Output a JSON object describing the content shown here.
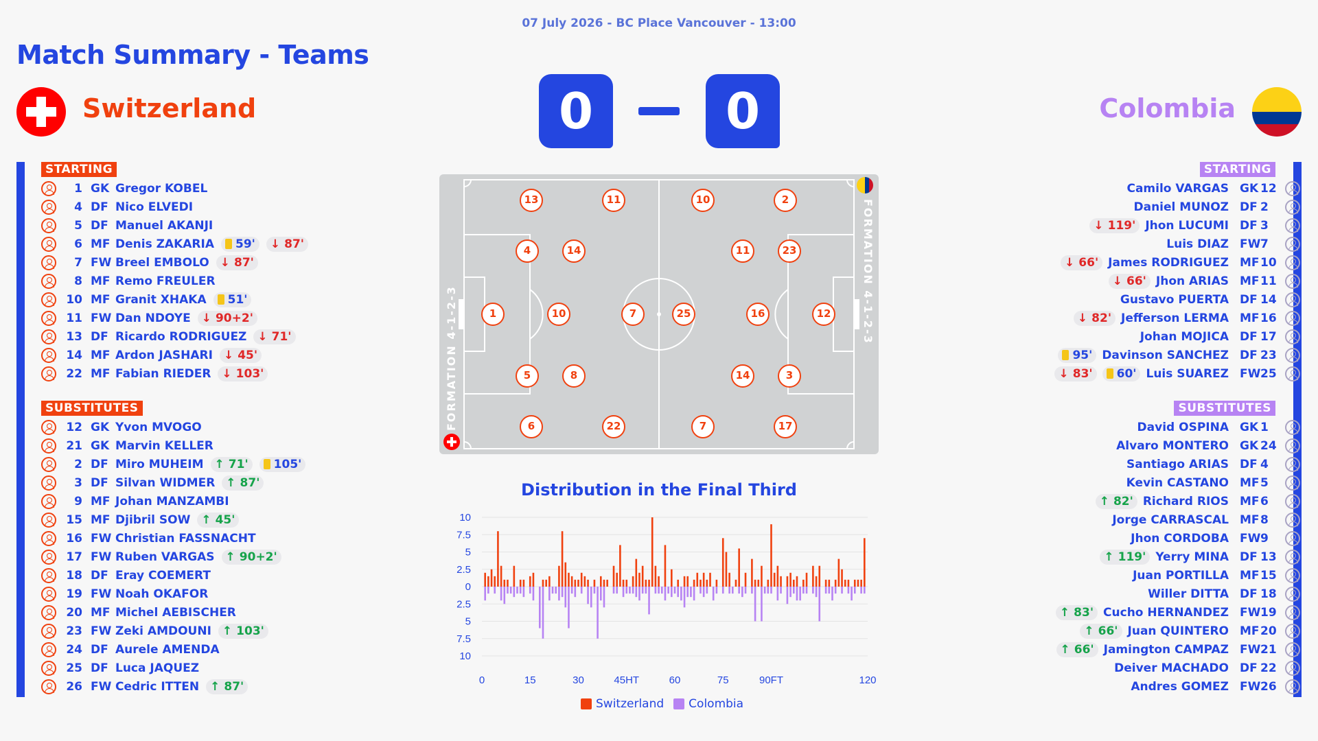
{
  "header": {
    "date_venue": "07 July 2026 - BC Place Vancouver - 13:00",
    "title": "Match Summary - Teams"
  },
  "teams": {
    "home": {
      "name": "Switzerland",
      "color": "#f0410f",
      "score": "0",
      "formation": "FORMATION 4-1-2-3",
      "flag_icon": "switzerland-flag-icon"
    },
    "away": {
      "name": "Colombia",
      "color": "#b783f3",
      "score": "0",
      "formation": "FORMATION 4-1-2-3",
      "flag_icon": "colombia-flag-icon"
    }
  },
  "labels": {
    "starting": "STARTING",
    "substitutes": "SUBSTITUTES"
  },
  "home_starting": [
    {
      "num": "1",
      "pos": "GK",
      "name": "Gregor KOBEL",
      "events": []
    },
    {
      "num": "4",
      "pos": "DF",
      "name": "Nico ELVEDI",
      "events": []
    },
    {
      "num": "5",
      "pos": "DF",
      "name": "Manuel AKANJI",
      "events": []
    },
    {
      "num": "6",
      "pos": "MF",
      "name": "Denis ZAKARIA",
      "events": [
        {
          "type": "yellow",
          "min": "59'"
        },
        {
          "type": "off",
          "min": "87'"
        }
      ]
    },
    {
      "num": "7",
      "pos": "FW",
      "name": "Breel EMBOLO",
      "events": [
        {
          "type": "off",
          "min": "87'"
        }
      ]
    },
    {
      "num": "8",
      "pos": "MF",
      "name": "Remo FREULER",
      "events": []
    },
    {
      "num": "10",
      "pos": "MF",
      "name": "Granit XHAKA",
      "events": [
        {
          "type": "yellow",
          "min": "51'"
        }
      ]
    },
    {
      "num": "11",
      "pos": "FW",
      "name": "Dan NDOYE",
      "events": [
        {
          "type": "off",
          "min": "90+2'"
        }
      ]
    },
    {
      "num": "13",
      "pos": "DF",
      "name": "Ricardo RODRIGUEZ",
      "events": [
        {
          "type": "off",
          "min": "71'"
        }
      ]
    },
    {
      "num": "14",
      "pos": "MF",
      "name": "Ardon JASHARI",
      "events": [
        {
          "type": "off",
          "min": "45'"
        }
      ]
    },
    {
      "num": "22",
      "pos": "MF",
      "name": "Fabian RIEDER",
      "events": [
        {
          "type": "off",
          "min": "103'"
        }
      ]
    }
  ],
  "home_subs": [
    {
      "num": "12",
      "pos": "GK",
      "name": "Yvon MVOGO",
      "events": []
    },
    {
      "num": "21",
      "pos": "GK",
      "name": "Marvin KELLER",
      "events": []
    },
    {
      "num": "2",
      "pos": "DF",
      "name": "Miro MUHEIM",
      "events": [
        {
          "type": "on",
          "min": "71'"
        },
        {
          "type": "yellow",
          "min": "105'"
        }
      ]
    },
    {
      "num": "3",
      "pos": "DF",
      "name": "Silvan WIDMER",
      "events": [
        {
          "type": "on",
          "min": "87'"
        }
      ]
    },
    {
      "num": "9",
      "pos": "MF",
      "name": "Johan MANZAMBI",
      "events": []
    },
    {
      "num": "15",
      "pos": "MF",
      "name": "Djibril SOW",
      "events": [
        {
          "type": "on",
          "min": "45'"
        }
      ]
    },
    {
      "num": "16",
      "pos": "FW",
      "name": "Christian FASSNACHT",
      "events": []
    },
    {
      "num": "17",
      "pos": "FW",
      "name": "Ruben VARGAS",
      "events": [
        {
          "type": "on",
          "min": "90+2'"
        }
      ]
    },
    {
      "num": "18",
      "pos": "DF",
      "name": "Eray COEMERT",
      "events": []
    },
    {
      "num": "19",
      "pos": "FW",
      "name": "Noah OKAFOR",
      "events": []
    },
    {
      "num": "20",
      "pos": "MF",
      "name": "Michel AEBISCHER",
      "events": []
    },
    {
      "num": "23",
      "pos": "FW",
      "name": "Zeki AMDOUNI",
      "events": [
        {
          "type": "on",
          "min": "103'"
        }
      ]
    },
    {
      "num": "24",
      "pos": "DF",
      "name": "Aurele AMENDA",
      "events": []
    },
    {
      "num": "25",
      "pos": "DF",
      "name": "Luca JAQUEZ",
      "events": []
    },
    {
      "num": "26",
      "pos": "FW",
      "name": "Cedric ITTEN",
      "events": [
        {
          "type": "on",
          "min": "87'"
        }
      ]
    }
  ],
  "away_starting": [
    {
      "num": "12",
      "pos": "GK",
      "name": "Camilo VARGAS",
      "events": []
    },
    {
      "num": "2",
      "pos": "DF",
      "name": "Daniel MUNOZ",
      "events": []
    },
    {
      "num": "3",
      "pos": "DF",
      "name": "Jhon LUCUMI",
      "events": [
        {
          "type": "off",
          "min": "119'"
        }
      ]
    },
    {
      "num": "7",
      "pos": "FW",
      "name": "Luis DIAZ",
      "events": []
    },
    {
      "num": "10",
      "pos": "MF",
      "name": "James RODRIGUEZ",
      "events": [
        {
          "type": "off",
          "min": "66'"
        }
      ]
    },
    {
      "num": "11",
      "pos": "MF",
      "name": "Jhon ARIAS",
      "events": [
        {
          "type": "off",
          "min": "66'"
        }
      ]
    },
    {
      "num": "14",
      "pos": "DF",
      "name": "Gustavo PUERTA",
      "events": []
    },
    {
      "num": "16",
      "pos": "MF",
      "name": "Jefferson LERMA",
      "events": [
        {
          "type": "off",
          "min": "82'"
        }
      ]
    },
    {
      "num": "17",
      "pos": "DF",
      "name": "Johan MOJICA",
      "events": []
    },
    {
      "num": "23",
      "pos": "DF",
      "name": "Davinson SANCHEZ",
      "events": [
        {
          "type": "yellow",
          "min": "95'"
        }
      ]
    },
    {
      "num": "25",
      "pos": "FW",
      "name": "Luis SUAREZ",
      "events": [
        {
          "type": "off",
          "min": "83'"
        },
        {
          "type": "yellow",
          "min": "60'"
        }
      ]
    }
  ],
  "away_subs": [
    {
      "num": "1",
      "pos": "GK",
      "name": "David OSPINA",
      "events": []
    },
    {
      "num": "24",
      "pos": "GK",
      "name": "Alvaro MONTERO",
      "events": []
    },
    {
      "num": "4",
      "pos": "DF",
      "name": "Santiago ARIAS",
      "events": []
    },
    {
      "num": "5",
      "pos": "MF",
      "name": "Kevin CASTANO",
      "events": []
    },
    {
      "num": "6",
      "pos": "MF",
      "name": "Richard RIOS",
      "events": [
        {
          "type": "on",
          "min": "82'"
        }
      ]
    },
    {
      "num": "8",
      "pos": "MF",
      "name": "Jorge CARRASCAL",
      "events": []
    },
    {
      "num": "9",
      "pos": "FW",
      "name": "Jhon CORDOBA",
      "events": []
    },
    {
      "num": "13",
      "pos": "DF",
      "name": "Yerry MINA",
      "events": [
        {
          "type": "on",
          "min": "119'"
        }
      ]
    },
    {
      "num": "15",
      "pos": "MF",
      "name": "Juan PORTILLA",
      "events": []
    },
    {
      "num": "18",
      "pos": "DF",
      "name": "Willer DITTA",
      "events": []
    },
    {
      "num": "19",
      "pos": "FW",
      "name": "Cucho HERNANDEZ",
      "events": [
        {
          "type": "on",
          "min": "83'"
        }
      ]
    },
    {
      "num": "20",
      "pos": "MF",
      "name": "Juan QUINTERO",
      "events": [
        {
          "type": "on",
          "min": "66'"
        }
      ]
    },
    {
      "num": "21",
      "pos": "FW",
      "name": "Jamington CAMPAZ",
      "events": [
        {
          "type": "on",
          "min": "66'"
        }
      ]
    },
    {
      "num": "22",
      "pos": "DF",
      "name": "Deiver MACHADO",
      "events": []
    },
    {
      "num": "26",
      "pos": "FW",
      "name": "Andres GOMEZ",
      "events": []
    }
  ],
  "pitch": {
    "home_numbers": [
      "1",
      "4",
      "5",
      "13",
      "14",
      "6",
      "8",
      "10",
      "7",
      "11",
      "22"
    ],
    "away_numbers": [
      "12",
      "23",
      "3",
      "2",
      "17",
      "16",
      "11",
      "14",
      "25",
      "10",
      "7"
    ]
  },
  "chart_data": {
    "type": "bar",
    "title": "Distribution in the Final Third",
    "xlim": [
      0,
      120
    ],
    "x_ticks": [
      "0",
      "15",
      "30",
      "45HT",
      "60",
      "75",
      "90FT",
      "120"
    ],
    "x_tick_values": [
      0,
      15,
      30,
      45,
      60,
      75,
      90,
      120
    ],
    "ylim": [
      -10,
      10
    ],
    "y_ticks": [
      "10",
      "7.5",
      "5",
      "2.5",
      "0",
      "2.5",
      "5",
      "7.5",
      "10"
    ],
    "series": [
      {
        "name": "Switzerland",
        "color": "#f0410f",
        "x": [
          1,
          2,
          3,
          4,
          5,
          6,
          7,
          8,
          10,
          12,
          13,
          15,
          16,
          19,
          20,
          21,
          24,
          25,
          26,
          27,
          28,
          29,
          30,
          31,
          32,
          33,
          35,
          37,
          38,
          39,
          41,
          42,
          43,
          44,
          45,
          47,
          48,
          49,
          50,
          51,
          52,
          53,
          54,
          55,
          57,
          59,
          61,
          63,
          64,
          66,
          67,
          68,
          69,
          70,
          71,
          73,
          75,
          76,
          77,
          79,
          80,
          82,
          84,
          85,
          86,
          87,
          89,
          90,
          91,
          92,
          93,
          95,
          96,
          97,
          98,
          100,
          101,
          103,
          104,
          105,
          107,
          108,
          110,
          111,
          112,
          113,
          114,
          116,
          117,
          118,
          119
        ],
        "values": [
          2,
          1.5,
          2.5,
          1.5,
          8,
          3,
          1,
          1,
          3,
          1,
          1,
          1.5,
          2,
          1,
          1,
          1.5,
          3,
          8,
          3.5,
          2,
          1.5,
          1,
          1,
          2,
          1.5,
          1,
          1,
          1.5,
          1,
          1,
          3,
          2,
          6,
          1,
          1,
          1.5,
          4,
          2,
          3,
          1,
          1,
          10,
          3,
          1.5,
          6,
          2.5,
          1,
          1.5,
          1.5,
          1,
          2,
          1,
          2,
          1,
          2,
          1,
          7,
          5,
          2,
          1,
          5.5,
          2,
          4,
          1,
          1,
          3,
          1,
          9,
          2,
          3,
          1.5,
          1.5,
          2,
          1,
          1.5,
          1,
          2,
          3,
          1.5,
          3,
          1,
          1,
          1,
          4,
          2.5,
          1,
          1,
          1,
          1,
          1,
          7
        ]
      },
      {
        "name": "Colombia",
        "color": "#b783f3",
        "x": [
          1,
          2,
          4,
          6,
          7,
          8,
          9,
          10,
          11,
          12,
          13,
          15,
          16,
          18,
          19,
          21,
          22,
          23,
          24,
          25,
          26,
          27,
          28,
          29,
          31,
          33,
          34,
          35,
          36,
          37,
          38,
          41,
          42,
          44,
          45,
          46,
          47,
          48,
          49,
          50,
          51,
          52,
          54,
          55,
          56,
          57,
          58,
          59,
          60,
          61,
          62,
          63,
          64,
          65,
          66,
          68,
          69,
          70,
          72,
          73,
          75,
          77,
          78,
          80,
          81,
          82,
          84,
          85,
          87,
          88,
          89,
          90,
          92,
          93,
          95,
          96,
          97,
          98,
          99,
          100,
          101,
          103,
          104,
          105,
          107,
          108,
          109,
          110,
          112,
          114,
          115,
          116,
          118,
          119
        ],
        "values": [
          2,
          1,
          1,
          2,
          2.5,
          1,
          1,
          1.5,
          1,
          1,
          1.5,
          1,
          2,
          6,
          7.5,
          2,
          1,
          1,
          2,
          1.5,
          3,
          6,
          1,
          1.5,
          1,
          2.5,
          3,
          1,
          7.5,
          2,
          3,
          1,
          1,
          1.5,
          1,
          1,
          1,
          1.5,
          2,
          1,
          1,
          4,
          1,
          1,
          1,
          2,
          1,
          1.5,
          1,
          1.5,
          2,
          3,
          1.5,
          1.5,
          2,
          1,
          1.5,
          1,
          2,
          1,
          1,
          1,
          1,
          1,
          1.5,
          1,
          1,
          5,
          5,
          1,
          1,
          1,
          2,
          1,
          2.5,
          1.5,
          1,
          2,
          2,
          1,
          1,
          1,
          1.5,
          5,
          1,
          1,
          2,
          1,
          1,
          1,
          2,
          1,
          1,
          1
        ]
      }
    ]
  }
}
